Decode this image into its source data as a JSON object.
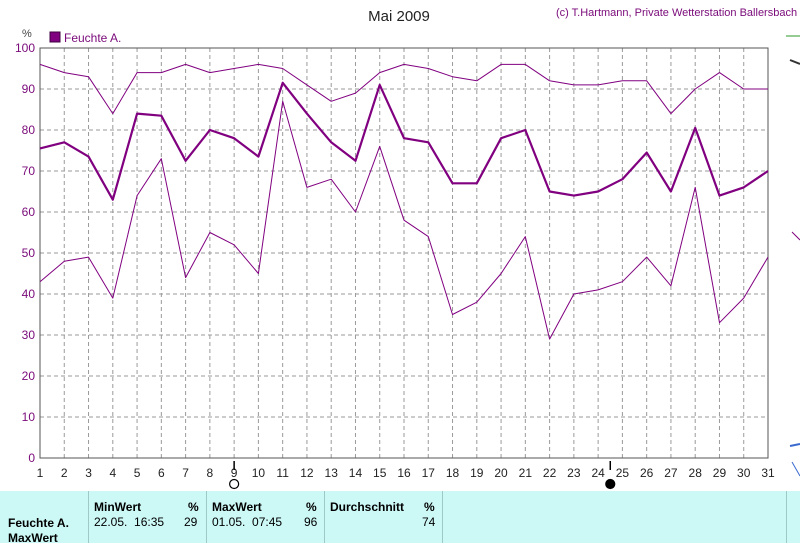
{
  "header": {
    "copyright": "(c) T.Hartmann, Private Wetterstation Ballersbach"
  },
  "chart_data": {
    "type": "line",
    "title": "Mai 2009",
    "ylabel": "%",
    "xlabel": "",
    "ylim": [
      0,
      100
    ],
    "yticks": [
      0,
      10,
      20,
      30,
      40,
      50,
      60,
      70,
      80,
      90,
      100
    ],
    "x": [
      1,
      2,
      3,
      4,
      5,
      6,
      7,
      8,
      9,
      10,
      11,
      12,
      13,
      14,
      15,
      16,
      17,
      18,
      19,
      20,
      21,
      22,
      23,
      24,
      25,
      26,
      27,
      28,
      29,
      30,
      31
    ],
    "grid": true,
    "legend": "top-left",
    "legend_label": "Feuchte A.",
    "color": "#800080",
    "moon_phases": [
      {
        "day": 9,
        "phase": "first-quarter"
      },
      {
        "day": 24.5,
        "phase": "new-moon"
      }
    ],
    "series": [
      {
        "role": "max",
        "values": [
          96,
          94,
          93,
          84,
          94,
          94,
          96,
          94,
          95,
          96,
          95,
          91,
          87,
          89,
          94,
          96,
          95,
          93,
          92,
          96,
          96,
          92,
          91,
          91,
          92,
          92,
          84,
          90,
          94,
          90,
          90
        ]
      },
      {
        "role": "average",
        "values": [
          75.5,
          77,
          73.5,
          63,
          84,
          83.5,
          72.5,
          80,
          78,
          73.5,
          91.5,
          84,
          77,
          72.5,
          91,
          78,
          77,
          67,
          67,
          78,
          80,
          65,
          64,
          65,
          68,
          74.5,
          65,
          80.5,
          64,
          66,
          70
        ]
      },
      {
        "role": "min",
        "values": [
          43,
          48,
          49,
          39,
          64,
          73,
          44,
          55,
          52,
          45,
          87,
          66,
          68,
          60,
          76,
          58,
          54,
          35,
          38,
          45,
          54,
          29,
          40,
          41,
          43,
          49,
          42,
          66,
          33,
          39,
          49
        ]
      }
    ]
  },
  "footer": {
    "label_series": "Feuchte A.",
    "label_maxwert": "MaxWert",
    "min_header": "MinWert",
    "min_unit": "%",
    "min_time": "22.05.  16:35",
    "min_value": "29",
    "max_header": "MaxWert",
    "max_unit": "%",
    "max_time": "01.05.  07:45",
    "max_value": "96",
    "avg_header": "Durchschnitt",
    "avg_unit": "%",
    "avg_value": "74"
  }
}
